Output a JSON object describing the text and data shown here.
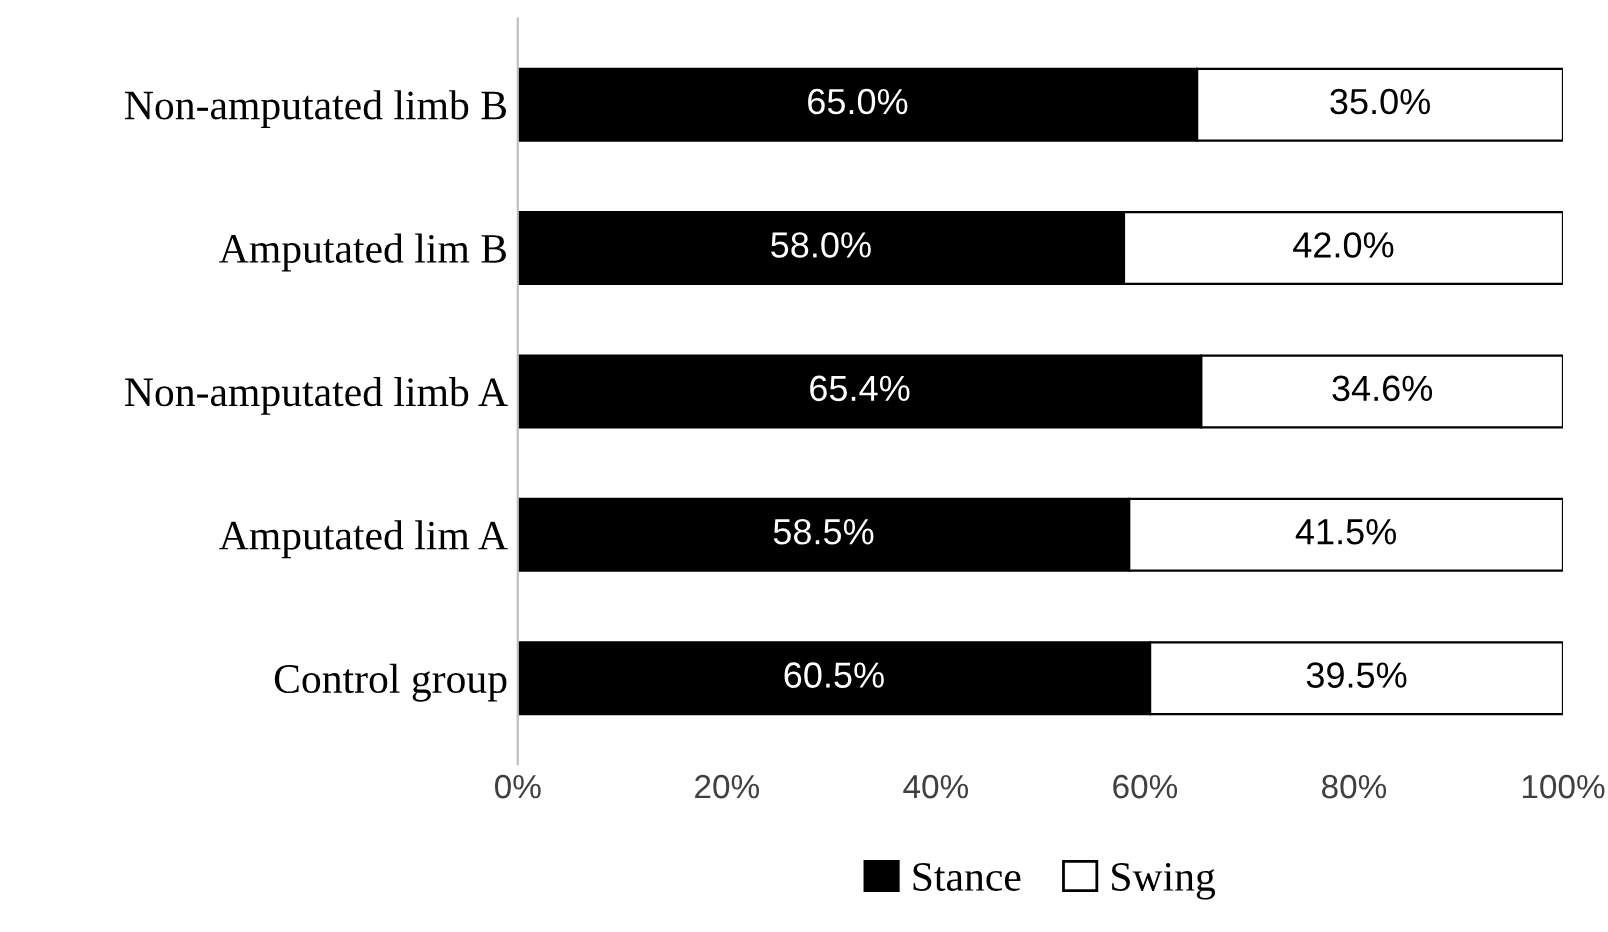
{
  "chart_data": {
    "type": "bar",
    "orientation": "horizontal",
    "stacked": true,
    "categories": [
      "Non-amputated limb B",
      "Amputated lim B",
      "Non-amputated limb A",
      "Amputated lim A",
      "Control group"
    ],
    "series": [
      {
        "name": "Stance",
        "color": "#000000",
        "values": [
          65.0,
          58.0,
          65.4,
          58.5,
          60.5
        ],
        "value_labels": [
          "65.0%",
          "58.0%",
          "65.4%",
          "58.5%",
          "60.5%"
        ]
      },
      {
        "name": "Swing",
        "color": "#ffffff",
        "values": [
          35.0,
          42.0,
          34.6,
          41.5,
          39.5
        ],
        "value_labels": [
          "35.0%",
          "42.0%",
          "34.6%",
          "41.5%",
          "39.5%"
        ]
      }
    ],
    "xlim": [
      0,
      100
    ],
    "xticks": [
      {
        "value": 0,
        "label": "0%"
      },
      {
        "value": 20,
        "label": "20%"
      },
      {
        "value": 40,
        "label": "40%"
      },
      {
        "value": 60,
        "label": "60%"
      },
      {
        "value": 80,
        "label": "80%"
      },
      {
        "value": 100,
        "label": "100%"
      }
    ],
    "grid": false,
    "legend": "bottom"
  }
}
